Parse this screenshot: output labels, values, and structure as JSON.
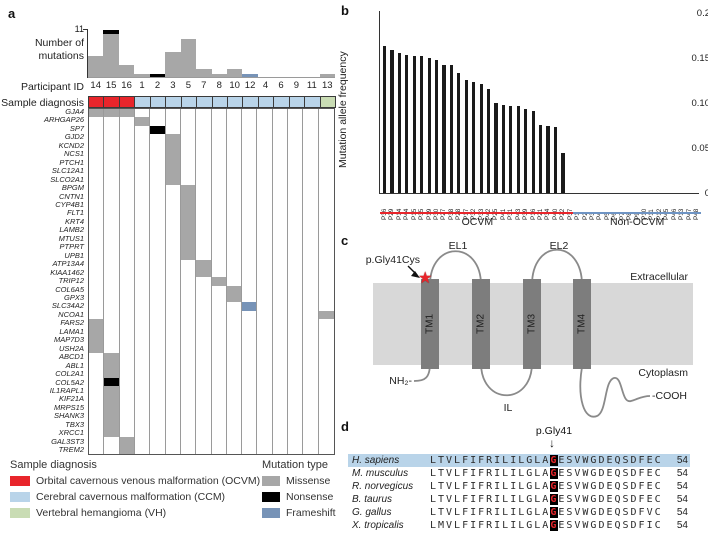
{
  "panels": {
    "a": "a",
    "b": "b",
    "c": "c",
    "d": "d"
  },
  "colors": {
    "OCVM": "#e8252b",
    "CCM": "#b9d4e9",
    "VH": "#c9dcb4",
    "missense": "#a7a7a7",
    "nonsense": "#000000",
    "frameshift": "#7793b7",
    "bar": "#1a1a1a",
    "membrane": "#d8d8d8",
    "tm": "#7d7d7d",
    "non_ocvm_line": "#6e94c4"
  },
  "panel_a": {
    "ylabel_lines": [
      "Number of",
      "mutations"
    ],
    "ymax_label": "11",
    "ymax": 11,
    "participant_row_label": "Participant ID",
    "diagnosis_row_label": "Sample diagnosis",
    "participants": [
      {
        "id": "14",
        "diagnosis": "OCVM",
        "missense": 5,
        "nonsense": 0,
        "frameshift": 0
      },
      {
        "id": "15",
        "diagnosis": "OCVM",
        "missense": 10,
        "nonsense": 1,
        "frameshift": 0
      },
      {
        "id": "16",
        "diagnosis": "OCVM",
        "missense": 3,
        "nonsense": 0,
        "frameshift": 0
      },
      {
        "id": "1",
        "diagnosis": "CCM",
        "missense": 1,
        "nonsense": 0,
        "frameshift": 0
      },
      {
        "id": "2",
        "diagnosis": "CCM",
        "missense": 0,
        "nonsense": 1,
        "frameshift": 0
      },
      {
        "id": "3",
        "diagnosis": "CCM",
        "missense": 6,
        "nonsense": 0,
        "frameshift": 0
      },
      {
        "id": "5",
        "diagnosis": "CCM",
        "missense": 9,
        "nonsense": 0,
        "frameshift": 0
      },
      {
        "id": "7",
        "diagnosis": "CCM",
        "missense": 2,
        "nonsense": 0,
        "frameshift": 0
      },
      {
        "id": "8",
        "diagnosis": "CCM",
        "missense": 1,
        "nonsense": 0,
        "frameshift": 0
      },
      {
        "id": "10",
        "diagnosis": "CCM",
        "missense": 2,
        "nonsense": 0,
        "frameshift": 0
      },
      {
        "id": "12",
        "diagnosis": "CCM",
        "missense": 0,
        "nonsense": 0,
        "frameshift": 1
      },
      {
        "id": "4",
        "diagnosis": "CCM",
        "missense": 0,
        "nonsense": 0,
        "frameshift": 0
      },
      {
        "id": "6",
        "diagnosis": "CCM",
        "missense": 0,
        "nonsense": 0,
        "frameshift": 0
      },
      {
        "id": "9",
        "diagnosis": "CCM",
        "missense": 0,
        "nonsense": 0,
        "frameshift": 0
      },
      {
        "id": "11",
        "diagnosis": "CCM",
        "missense": 0,
        "nonsense": 0,
        "frameshift": 0
      },
      {
        "id": "13",
        "diagnosis": "VH",
        "missense": 1,
        "nonsense": 0,
        "frameshift": 0
      }
    ],
    "genes": [
      {
        "name": "GJA4",
        "cells": {
          "14": "missense",
          "15": "missense",
          "16": "missense"
        }
      },
      {
        "name": "ARHGAP26",
        "cells": {
          "1": "missense"
        }
      },
      {
        "name": "SP7",
        "cells": {
          "2": "nonsense"
        }
      },
      {
        "name": "GJD2",
        "cells": {
          "3": "missense"
        }
      },
      {
        "name": "KCND2",
        "cells": {
          "3": "missense"
        }
      },
      {
        "name": "NCS1",
        "cells": {
          "3": "missense"
        }
      },
      {
        "name": "PTCH1",
        "cells": {
          "3": "missense"
        }
      },
      {
        "name": "SLC12A1",
        "cells": {
          "3": "missense"
        }
      },
      {
        "name": "SLCO2A1",
        "cells": {
          "3": "missense"
        }
      },
      {
        "name": "BPGM",
        "cells": {
          "5": "missense"
        }
      },
      {
        "name": "CNTN1",
        "cells": {
          "5": "missense"
        }
      },
      {
        "name": "CYP4B1",
        "cells": {
          "5": "missense"
        }
      },
      {
        "name": "FLT1",
        "cells": {
          "5": "missense"
        }
      },
      {
        "name": "KRT4",
        "cells": {
          "5": "missense"
        }
      },
      {
        "name": "LAMB2",
        "cells": {
          "5": "missense"
        }
      },
      {
        "name": "MTUS1",
        "cells": {
          "5": "missense"
        }
      },
      {
        "name": "PTPRT",
        "cells": {
          "5": "missense"
        }
      },
      {
        "name": "UPB1",
        "cells": {
          "5": "missense"
        }
      },
      {
        "name": "ATP13A4",
        "cells": {
          "7": "missense"
        }
      },
      {
        "name": "KIAA1462",
        "cells": {
          "7": "missense"
        }
      },
      {
        "name": "TRIP12",
        "cells": {
          "8": "missense"
        }
      },
      {
        "name": "COL6A5",
        "cells": {
          "10": "missense"
        }
      },
      {
        "name": "GPX3",
        "cells": {
          "10": "missense"
        }
      },
      {
        "name": "SLC34A2",
        "cells": {
          "12": "frameshift"
        }
      },
      {
        "name": "NCOA1",
        "cells": {
          "13": "missense"
        }
      },
      {
        "name": "FARS2",
        "cells": {
          "14": "missense"
        }
      },
      {
        "name": "LAMA1",
        "cells": {
          "14": "missense"
        }
      },
      {
        "name": "MAP7D3",
        "cells": {
          "14": "missense"
        }
      },
      {
        "name": "USH2A",
        "cells": {
          "14": "missense"
        }
      },
      {
        "name": "ABCD1",
        "cells": {
          "15": "missense"
        }
      },
      {
        "name": "ABL1",
        "cells": {
          "15": "missense"
        }
      },
      {
        "name": "COL2A1",
        "cells": {
          "15": "missense"
        }
      },
      {
        "name": "COL5A2",
        "cells": {
          "15": "nonsense"
        }
      },
      {
        "name": "IL1RAPL1",
        "cells": {
          "15": "missense"
        }
      },
      {
        "name": "KIF21A",
        "cells": {
          "15": "missense"
        }
      },
      {
        "name": "MRPS15",
        "cells": {
          "15": "missense"
        }
      },
      {
        "name": "SHANK3",
        "cells": {
          "15": "missense"
        }
      },
      {
        "name": "TBX3",
        "cells": {
          "15": "missense"
        }
      },
      {
        "name": "XRCC1",
        "cells": {
          "15": "missense"
        }
      },
      {
        "name": "GAL3ST3",
        "cells": {
          "16": "missense"
        }
      },
      {
        "name": "TREM2",
        "cells": {
          "16": "missense"
        }
      }
    ]
  },
  "legend": {
    "diagnosis_title": "Sample diagnosis",
    "diagnosis_items": [
      {
        "key": "OCVM",
        "label": "Orbital cavernous venous malformation (OCVM)"
      },
      {
        "key": "CCM",
        "label": "Cerebral cavernous malformation (CCM)"
      },
      {
        "key": "VH",
        "label": "Vertebral hemangioma (VH)"
      }
    ],
    "mutation_title": "Mutation type",
    "mutation_items": [
      {
        "key": "missense",
        "label": "Missense"
      },
      {
        "key": "nonsense",
        "label": "Nonsense"
      },
      {
        "key": "frameshift",
        "label": "Frameshift"
      }
    ]
  },
  "panel_b": {
    "ylabel": "Mutation allele frequency",
    "yticks": [
      "0.2",
      "0.15",
      "0.10",
      "0.05",
      "0"
    ],
    "ymax": 0.2,
    "groups": [
      {
        "name": "OCVM",
        "color": "#e8252b"
      },
      {
        "name": "Non-OCVM",
        "color": "#6e94c4"
      }
    ],
    "samples": [
      {
        "id": "P36",
        "value": 0.163,
        "group": "OCVM"
      },
      {
        "id": "P29",
        "value": 0.159,
        "group": "OCVM"
      },
      {
        "id": "P14",
        "value": 0.156,
        "group": "OCVM"
      },
      {
        "id": "P44",
        "value": 0.153,
        "group": "OCVM"
      },
      {
        "id": "P15",
        "value": 0.152,
        "group": "OCVM"
      },
      {
        "id": "P35",
        "value": 0.152,
        "group": "OCVM"
      },
      {
        "id": "P19",
        "value": 0.15,
        "group": "OCVM"
      },
      {
        "id": "P30",
        "value": 0.148,
        "group": "OCVM"
      },
      {
        "id": "P27",
        "value": 0.142,
        "group": "OCVM"
      },
      {
        "id": "P38",
        "value": 0.142,
        "group": "OCVM"
      },
      {
        "id": "P28",
        "value": 0.133,
        "group": "OCVM"
      },
      {
        "id": "P17",
        "value": 0.126,
        "group": "OCVM"
      },
      {
        "id": "P32",
        "value": 0.123,
        "group": "OCVM"
      },
      {
        "id": "P33",
        "value": 0.121,
        "group": "OCVM"
      },
      {
        "id": "P42",
        "value": 0.116,
        "group": "OCVM"
      },
      {
        "id": "P25",
        "value": 0.1,
        "group": "OCVM"
      },
      {
        "id": "P41",
        "value": 0.098,
        "group": "OCVM"
      },
      {
        "id": "P31",
        "value": 0.097,
        "group": "OCVM"
      },
      {
        "id": "P43",
        "value": 0.097,
        "group": "OCVM"
      },
      {
        "id": "P39",
        "value": 0.093,
        "group": "OCVM"
      },
      {
        "id": "P16",
        "value": 0.091,
        "group": "OCVM"
      },
      {
        "id": "P21",
        "value": 0.076,
        "group": "OCVM"
      },
      {
        "id": "P34",
        "value": 0.075,
        "group": "OCVM"
      },
      {
        "id": "P40",
        "value": 0.073,
        "group": "OCVM"
      },
      {
        "id": "P22",
        "value": 0.044,
        "group": "OCVM"
      },
      {
        "id": "P37",
        "value": 0,
        "group": "OCVM"
      },
      {
        "id": "P1",
        "value": 0,
        "group": "Non-OCVM"
      },
      {
        "id": "P2",
        "value": 0,
        "group": "Non-OCVM"
      },
      {
        "id": "P3",
        "value": 0,
        "group": "Non-OCVM"
      },
      {
        "id": "P4",
        "value": 0,
        "group": "Non-OCVM"
      },
      {
        "id": "P5",
        "value": 0,
        "group": "Non-OCVM"
      },
      {
        "id": "P6",
        "value": 0,
        "group": "Non-OCVM"
      },
      {
        "id": "P7",
        "value": 0,
        "group": "Non-OCVM"
      },
      {
        "id": "P8",
        "value": 0,
        "group": "Non-OCVM"
      },
      {
        "id": "P9",
        "value": 0,
        "group": "Non-OCVM"
      },
      {
        "id": "P10",
        "value": 0,
        "group": "Non-OCVM"
      },
      {
        "id": "P11",
        "value": 0,
        "group": "Non-OCVM"
      },
      {
        "id": "P12",
        "value": 0,
        "group": "Non-OCVM"
      },
      {
        "id": "P45",
        "value": 0,
        "group": "Non-OCVM"
      },
      {
        "id": "P46",
        "value": 0,
        "group": "Non-OCVM"
      },
      {
        "id": "P13",
        "value": 0,
        "group": "Non-OCVM"
      },
      {
        "id": "P47",
        "value": 0,
        "group": "Non-OCVM"
      },
      {
        "id": "P48",
        "value": 0,
        "group": "Non-OCVM"
      }
    ]
  },
  "panel_c": {
    "mutation_label": "p.Gly41Cys",
    "star": "★",
    "el1": "EL1",
    "el2": "EL2",
    "il": "IL",
    "extracellular": "Extracellular",
    "cytoplasm": "Cytoplasm",
    "nterm": "NH₂-",
    "cterm": "-COOH",
    "tms": [
      "TM1",
      "TM2",
      "TM3",
      "TM4"
    ]
  },
  "panel_d": {
    "annotation": "p.Gly41",
    "arrow": "↓",
    "rows": [
      {
        "species": "H. sapiens",
        "pre": "LTVLFIFRILILGLA",
        "res": "G",
        "post": "ESVWGDEQSDFEC",
        "pos": "54",
        "highlight": true
      },
      {
        "species": "M. musculus",
        "pre": "LTVLFIFRILILGLA",
        "res": "G",
        "post": "ESVWGDEQSDFEC",
        "pos": "54",
        "highlight": false
      },
      {
        "species": "R. norvegicus",
        "pre": "LTVLFIFRILILGLA",
        "res": "G",
        "post": "ESVWGDEQSDFEC",
        "pos": "54",
        "highlight": false
      },
      {
        "species": "B. taurus",
        "pre": "LTVLFIFRILILGLA",
        "res": "G",
        "post": "ESVWGDEQSDFEC",
        "pos": "54",
        "highlight": false
      },
      {
        "species": "G. gallus",
        "pre": "LTVLFIFRILILGLA",
        "res": "G",
        "post": "ESVWGDEQSDFVC",
        "pos": "54",
        "highlight": false
      },
      {
        "species": "X. tropicalis",
        "pre": "LMVLFIFRILILGLA",
        "res": "G",
        "post": "ESVWGDEQSDFIC",
        "pos": "54",
        "highlight": false
      }
    ]
  },
  "chart_data": [
    {
      "type": "bar",
      "title": "Number of mutations",
      "categories": [
        "14",
        "15",
        "16",
        "1",
        "2",
        "3",
        "5",
        "7",
        "8",
        "10",
        "12",
        "4",
        "6",
        "9",
        "11",
        "13"
      ],
      "series": [
        {
          "name": "Missense",
          "values": [
            5,
            10,
            3,
            1,
            0,
            6,
            9,
            2,
            1,
            2,
            0,
            0,
            0,
            0,
            0,
            1
          ]
        },
        {
          "name": "Nonsense",
          "values": [
            0,
            1,
            0,
            0,
            1,
            0,
            0,
            0,
            0,
            0,
            0,
            0,
            0,
            0,
            0,
            0
          ]
        },
        {
          "name": "Frameshift",
          "values": [
            0,
            0,
            0,
            0,
            0,
            0,
            0,
            0,
            0,
            0,
            1,
            0,
            0,
            0,
            0,
            0
          ]
        }
      ],
      "xlabel": "Participant ID",
      "ylabel": "Number of mutations",
      "ylim": [
        0,
        11
      ],
      "legend_position": "bottom"
    },
    {
      "type": "bar",
      "title": "Mutation allele frequency",
      "x": [
        "P36",
        "P29",
        "P14",
        "P44",
        "P15",
        "P35",
        "P19",
        "P30",
        "P27",
        "P38",
        "P28",
        "P17",
        "P32",
        "P33",
        "P42",
        "P25",
        "P41",
        "P31",
        "P43",
        "P39",
        "P16",
        "P21",
        "P34",
        "P40",
        "P22",
        "P37",
        "P1",
        "P2",
        "P3",
        "P4",
        "P5",
        "P6",
        "P7",
        "P8",
        "P9",
        "P10",
        "P11",
        "P12",
        "P45",
        "P46",
        "P13",
        "P47",
        "P48"
      ],
      "values": [
        0.163,
        0.159,
        0.156,
        0.153,
        0.152,
        0.152,
        0.15,
        0.148,
        0.142,
        0.142,
        0.133,
        0.126,
        0.123,
        0.121,
        0.116,
        0.1,
        0.098,
        0.097,
        0.097,
        0.093,
        0.091,
        0.076,
        0.075,
        0.073,
        0.044,
        0,
        0,
        0,
        0,
        0,
        0,
        0,
        0,
        0,
        0,
        0,
        0,
        0,
        0,
        0,
        0,
        0,
        0
      ],
      "group_sizes": {
        "OCVM": 26,
        "Non-OCVM": 17
      },
      "xlabel": "",
      "ylabel": "Mutation allele frequency",
      "ylim": [
        0,
        0.2
      ],
      "grid": false
    }
  ]
}
